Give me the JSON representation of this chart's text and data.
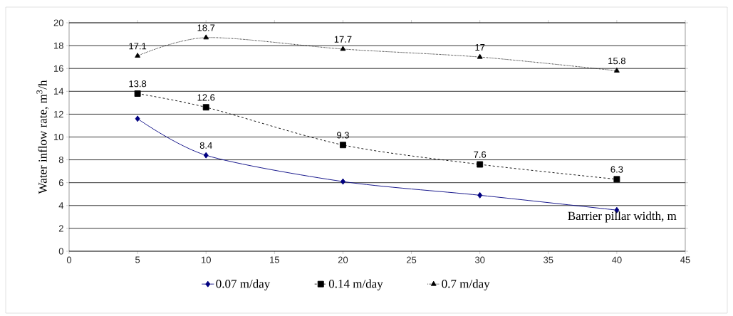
{
  "chart_data": {
    "type": "line",
    "xlabel": "Barrier pillar width, m",
    "ylabel": "Water inflow rate, m$^{3}$/h",
    "x": [
      5,
      10,
      20,
      30,
      40
    ],
    "xlim": [
      0,
      45
    ],
    "xticks": [
      0,
      5,
      10,
      15,
      20,
      25,
      30,
      35,
      40,
      45
    ],
    "ylim": [
      0,
      20
    ],
    "yticks": [
      0,
      2,
      4,
      6,
      8,
      10,
      12,
      14,
      16,
      18,
      20
    ],
    "grid": "y",
    "legend": "bottom",
    "series": [
      {
        "name": "0.07 m/day",
        "color": "#000080",
        "marker": "diamond",
        "line_style": "solid",
        "values": [
          11.6,
          8.4,
          6.1,
          4.9,
          3.6
        ],
        "value_labels": [
          null,
          "8.4",
          null,
          null,
          null
        ]
      },
      {
        "name": "0.14 m/day",
        "color": "#000000",
        "marker": "square",
        "line_style": "dashed",
        "values": [
          13.8,
          12.6,
          9.3,
          7.6,
          6.3
        ],
        "value_labels": [
          "13.8",
          "12.6",
          "9.3",
          "7.6",
          "6.3"
        ]
      },
      {
        "name": "0.7 m/day",
        "color": "#000000",
        "marker": "triangle",
        "line_style": "dotted",
        "values": [
          17.1,
          18.7,
          17.7,
          17,
          15.8
        ],
        "value_labels": [
          "17.1",
          "18.7",
          "17.7",
          "17",
          "15.8"
        ]
      }
    ]
  }
}
